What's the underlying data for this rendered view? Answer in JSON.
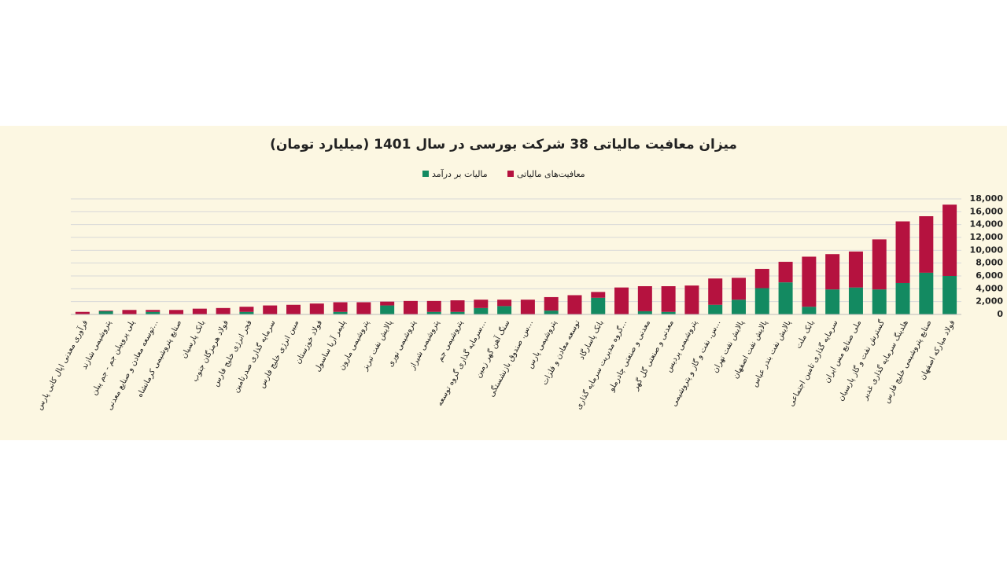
{
  "chart_data": {
    "type": "stacked_bar",
    "title": "میزان معافیت مالیاتی 38 شرکت بورسی در سال 1401 (میلیارد تومان)",
    "categories": [
      "فرآوری معدنی اپال کانی پارس",
      "پتروشیمی شازند",
      "پلی پروپیلن جم - جم پیلن",
      "توسعه معادن و صنایع معدنی...",
      "صنایع پتروشیمی کرمانشاه",
      "بانک پارسیان",
      "فولاد هرمزگان جنوب",
      "فجر انرژی خلیج فارس",
      "سرمایه گذاری صدرتامین",
      "مبین انرژی خلیج فارس",
      "فولاد خوزستان",
      "پلیمر آریا ساسول",
      "پتروشیمی مارون",
      "پالایش نفت تبریز",
      "پتروشیمی نوری",
      "پتروشیمی شیراز",
      "پتروشیمی جم",
      "سرمایه گذاری گروه توسعه...",
      "سنگ آهن گهر زمین",
      "س. صندوق بازنشستگی...",
      "پتروشیمی پارس",
      "توسعه معادن و فلزات",
      "بانک پاسارگاد",
      "گروه مدیریت سرمایه گذاری...",
      "معدنی و صنعتی چادرملو",
      "معدنی و صنعتی گل گهر",
      "پتروشیمی پردیس",
      "س. نفت و گاز و پتروشیمی...",
      "پالایش نفت تهران",
      "پالایش نفت اصفهان",
      "پالایش نفت بندر عباس",
      "بانک ملت",
      "سرمایه گذاری تامین اجتماعی",
      "ملی صنایع مس ایران",
      "گسترش نفت و گاز پارسیان",
      "هلدینگ سرمایه گذاری غدیر",
      "صنایع پتروشیمی خلیج فارس",
      "فولاد مبارکه اصفهان"
    ],
    "series": [
      {
        "name": "مالیات بر درآمد",
        "color": "#138a61",
        "values": [
          0,
          500,
          0,
          400,
          0,
          0,
          0,
          400,
          0,
          0,
          0,
          400,
          0,
          1400,
          0,
          400,
          400,
          1000,
          1300,
          0,
          600,
          0,
          2600,
          0,
          500,
          400,
          0,
          1500,
          2300,
          4100,
          5000,
          1200,
          3900,
          4200,
          3900,
          4900,
          6500,
          6000
        ]
      },
      {
        "name": "معافیت‌های مالیاتی",
        "color": "#b5123f",
        "values": [
          400,
          100,
          700,
          300,
          700,
          900,
          1000,
          800,
          1400,
          1500,
          1700,
          1500,
          1900,
          600,
          2100,
          1700,
          1800,
          1300,
          1000,
          2300,
          2100,
          3000,
          900,
          4200,
          3900,
          4000,
          4500,
          4100,
          3400,
          3000,
          3200,
          7800,
          5500,
          5600,
          7800,
          9600,
          8800,
          11100
        ]
      }
    ],
    "ylim": [
      0,
      18000
    ],
    "yticks": [
      0,
      {
        "value": 2000,
        "label": "2,000"
      },
      {
        "value": 4000,
        "label": "4,000"
      },
      {
        "value": 6000,
        "label": "6,000"
      },
      {
        "value": 8000,
        "label": "8,000"
      },
      {
        "value": 10000,
        "label": "10,000"
      },
      {
        "value": 12000,
        "label": "12,000"
      },
      {
        "value": 14000,
        "label": "14,000"
      },
      {
        "value": 16000,
        "label": "16,000"
      },
      {
        "value": 18000,
        "label": "18,000"
      }
    ],
    "grid": true
  }
}
